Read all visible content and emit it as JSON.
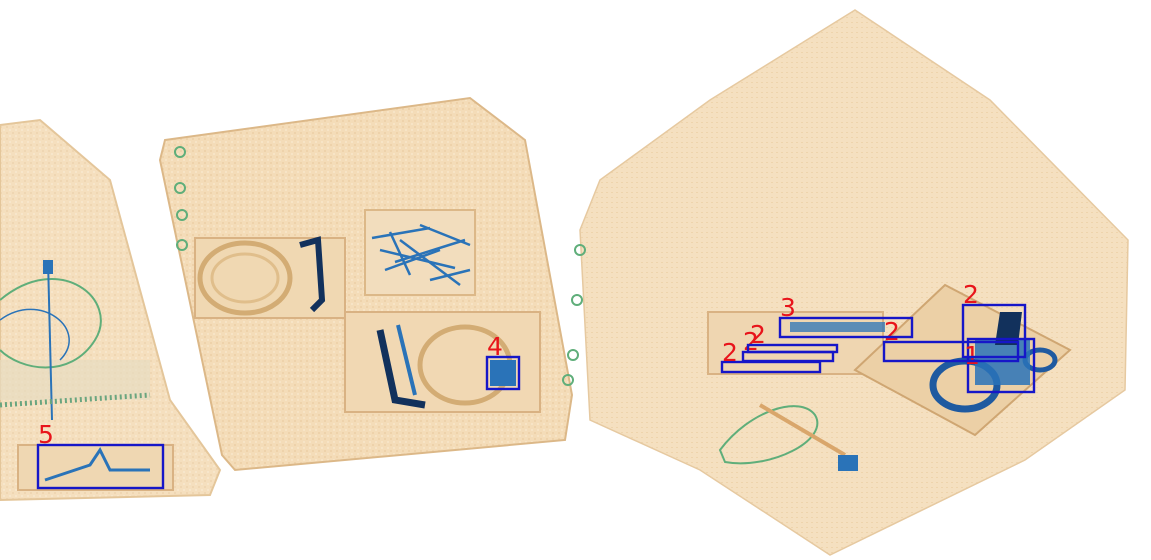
{
  "image": {
    "kind": "x-ray baggage scan",
    "colors": {
      "background": "#ffffff",
      "organic_material": "#f1d3a8",
      "organic_edge": "#d9b283",
      "metal_blue": "#2a73b8",
      "dense_dark": "#12315c",
      "mixed_green": "#5fae7a",
      "box_stroke": "#1616c8",
      "label_text": "#e8141b"
    }
  },
  "detections": [
    {
      "label": "1"
    },
    {
      "label": "2"
    },
    {
      "label": "2"
    },
    {
      "label": "2"
    },
    {
      "label": "2"
    },
    {
      "label": "2"
    },
    {
      "label": "3"
    },
    {
      "label": "4"
    },
    {
      "label": "5"
    }
  ]
}
